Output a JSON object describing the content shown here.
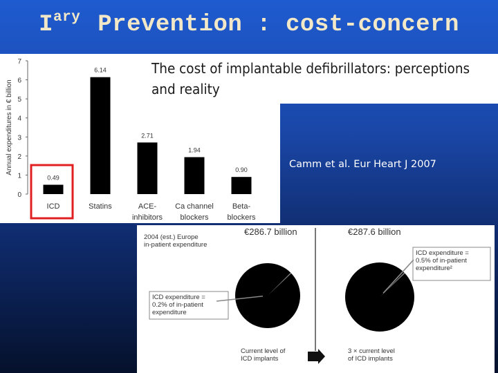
{
  "slide": {
    "title_prefix": "I",
    "title_sup": "ary",
    "title_rest": " Prevention : cost-concern",
    "citation": "Camm  et al. Eur Heart J 2007"
  },
  "article": {
    "title": "The cost of implantable defibrillators: perceptions and reality"
  },
  "highlight_color": "#e02020",
  "chart_data": [
    {
      "type": "bar",
      "ylabel": "Annual expenditures in € billion",
      "ylim": [
        0,
        7
      ],
      "yticks": [
        "0",
        "1",
        "2",
        "3",
        "4",
        "5",
        "6",
        "7"
      ],
      "categories": [
        [
          "ICD"
        ],
        [
          "Statins"
        ],
        [
          "ACE-",
          "inhibitors"
        ],
        [
          "Ca channel",
          "blockers"
        ],
        [
          "Beta-",
          "blockers"
        ]
      ],
      "values": [
        0.49,
        6.14,
        2.71,
        1.94,
        0.9
      ],
      "value_labels": [
        "0.49",
        "6.14",
        "2.71",
        "1.94",
        "0.90"
      ],
      "highlighted_category": "ICD",
      "bar_color": "#000000"
    },
    {
      "type": "pie",
      "header_left": [
        "2004 (est.) Europe",
        "in-patient expenditure"
      ],
      "charts": [
        {
          "total_label": "€286.7 billion",
          "icd_share_percent": 0.2,
          "annotation": [
            "ICD expenditure =",
            "0.2% of in-patient",
            "expenditure"
          ],
          "footer": [
            "Current level of",
            "ICD implants"
          ]
        },
        {
          "total_label": "€287.6 billion",
          "icd_share_percent": 0.5,
          "annotation": [
            "ICD expenditure =",
            "0.5% of in-patient",
            "expenditure²"
          ],
          "footer": [
            "3 × current level",
            "of ICD implants"
          ]
        }
      ]
    }
  ]
}
